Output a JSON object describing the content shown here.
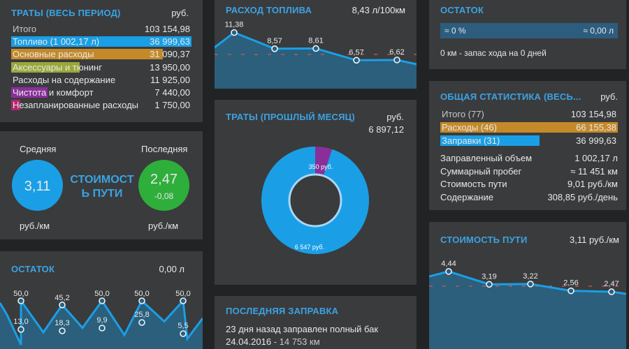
{
  "colors": {
    "blue": "#1a9fe6",
    "orange": "#c48a2a",
    "olive": "#9aa83a",
    "purple": "#8a2f9a",
    "magenta": "#b0296f",
    "green": "#2eae3a",
    "bg": "#222325",
    "card": "#3a3b3d",
    "title": "#3aa3e3"
  },
  "expenses_all": {
    "title": "ТРАТЫ (ВЕСЬ ПЕРИОД)",
    "unit": "руб.",
    "rows": [
      {
        "label": "Итого",
        "value": "103 154,98",
        "fill": 0
      },
      {
        "label": "Топливо (1 002,17 л)",
        "value": "36 999,63",
        "fill": 1.0
      },
      {
        "label": "Основные расходы",
        "value": "31 090,37",
        "fill": 0.84
      },
      {
        "label": "Аксессуары и тюнинг",
        "value": "13 950,00",
        "fill": 0.38
      },
      {
        "label": "Расходы на содержание",
        "value": "11 925,00",
        "fill": 0.32
      },
      {
        "label": "Чистота и комфорт",
        "value": "7 440,00",
        "fill": 0.2
      },
      {
        "label": "Незапланированные расходы",
        "value": "1 750,00",
        "fill": 0.05
      }
    ]
  },
  "trip_cost": {
    "avg_label": "Средняя",
    "last_label": "Последняя",
    "center": "СТОИМОСТЬ ПУТИ",
    "avg_value": "3,11",
    "last_value": "2,47",
    "last_delta": "-0,08",
    "unit_left": "руб./км",
    "unit_right": "руб./км"
  },
  "remain_left": {
    "title": "ОСТАТОК",
    "unit": "0,00 л",
    "points": [
      "50,0",
      "13,0",
      "45,2",
      "18,3",
      "50,0",
      "9,9",
      "50,0",
      "25,8",
      "50,0",
      "5,5"
    ]
  },
  "fuel": {
    "title": "РАСХОД ТОПЛИВА",
    "unit": "8,43 л/100км",
    "points": [
      "11,38",
      "8,57",
      "8,61",
      "6,57",
      "6,62"
    ]
  },
  "last_month": {
    "title": "ТРАТЫ (ПРОШЛЫЙ МЕСЯЦ)",
    "unit": "руб.",
    "total": "6 897,12",
    "slice_small": "350 руб.",
    "slice_big": "6 547 руб.",
    "small_value": 350,
    "big_value": 6547
  },
  "last_fill": {
    "title": "ПОСЛЕДНЯЯ ЗАПРАВКА",
    "line1": "23 дня назад заправлен полный бак",
    "line2_date": "24.04.2016",
    "line2_rest": " - 14 753 км"
  },
  "remain_right": {
    "title": "ОСТАТОК",
    "pct": "≈ 0 %",
    "liters": "≈ 0,00 л",
    "note": "0 км - запас хода на 0 дней"
  },
  "stats": {
    "title": "ОБЩАЯ СТАТИСТИКА (ВЕСЬ...",
    "unit": "руб.",
    "rows": [
      {
        "label": "Итого (77)",
        "value": "103 154,98",
        "fill": 0
      },
      {
        "label": "Расходы (46)",
        "value": "66 155,38",
        "fill": 1.0
      },
      {
        "label": "Заправки (31)",
        "value": "36 999,63",
        "fill": 0.56
      }
    ],
    "info": [
      {
        "label": "Заправленный объем",
        "value": "1 002,17 л"
      },
      {
        "label": "Суммарный пробег",
        "value": "≈ 11 451 км"
      },
      {
        "label": "Стоимость пути",
        "value": "9,01 руб./км"
      },
      {
        "label": "Содержание",
        "value": "308,85 руб./день"
      }
    ]
  },
  "trip_chart": {
    "title": "СТОИМОСТЬ ПУТИ",
    "unit": "3,11 руб./км",
    "points": [
      "4,44",
      "3,19",
      "3,22",
      "2,56",
      "2,47"
    ]
  }
}
